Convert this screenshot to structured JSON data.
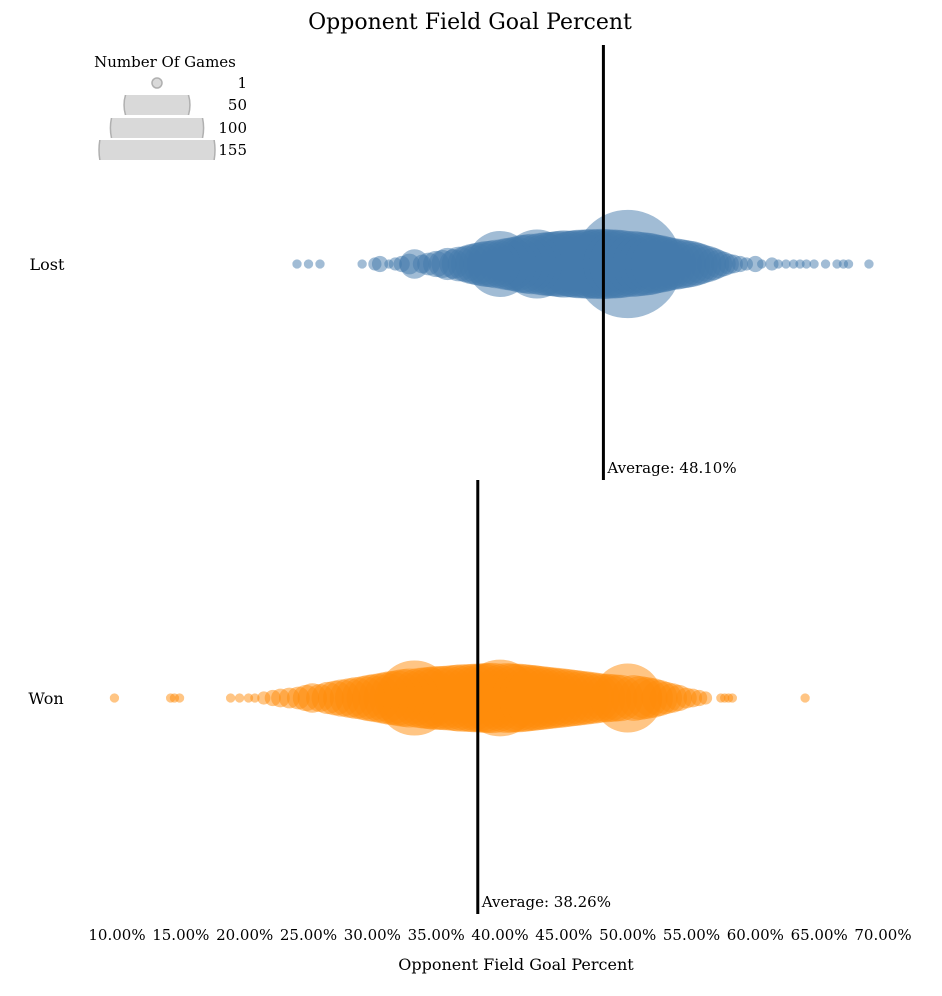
{
  "chart_data": {
    "type": "scatter",
    "subtype": "beeswarm-bubble",
    "title": "Opponent Field Goal Percent",
    "xlabel": "Opponent Field Goal Percent",
    "ylabel": "",
    "xlim": [
      10,
      70
    ],
    "x_ticks": [
      10,
      15,
      20,
      25,
      30,
      35,
      40,
      45,
      50,
      55,
      60,
      65,
      70
    ],
    "x_tick_labels": [
      "10.00%",
      "15.00%",
      "20.00%",
      "25.00%",
      "30.00%",
      "35.00%",
      "40.00%",
      "45.00%",
      "50.00%",
      "55.00%",
      "60.00%",
      "65.00%",
      "70.00%"
    ],
    "grid": false,
    "size_legend": {
      "title": "Number Of Games",
      "position": "top-left",
      "entries": [
        {
          "value": 1,
          "label": "1"
        },
        {
          "value": 50,
          "label": "50"
        },
        {
          "value": 100,
          "label": "100"
        },
        {
          "value": 155,
          "label": "155"
        }
      ],
      "max_value": 155
    },
    "series": [
      {
        "name": "Lost",
        "color": "#4479ab",
        "average": 48.1,
        "average_label": "Average: 48.10%",
        "points": [
          [
            24.1,
            1
          ],
          [
            25.0,
            1
          ],
          [
            25.9,
            1
          ],
          [
            29.2,
            1
          ],
          [
            30.2,
            2
          ],
          [
            30.6,
            3
          ],
          [
            31.3,
            1
          ],
          [
            31.8,
            2
          ],
          [
            32.3,
            3
          ],
          [
            32.9,
            5
          ],
          [
            33.3,
            10
          ],
          [
            33.9,
            4
          ],
          [
            34.4,
            6
          ],
          [
            35.0,
            8
          ],
          [
            35.5,
            9
          ],
          [
            35.9,
            12
          ],
          [
            36.4,
            10
          ],
          [
            36.8,
            14
          ],
          [
            37.3,
            15
          ],
          [
            37.7,
            18
          ],
          [
            38.1,
            20
          ],
          [
            38.5,
            22
          ],
          [
            38.9,
            24
          ],
          [
            39.3,
            25
          ],
          [
            39.7,
            27
          ],
          [
            40.0,
            50
          ],
          [
            40.4,
            30
          ],
          [
            40.8,
            32
          ],
          [
            41.2,
            34
          ],
          [
            41.7,
            38
          ],
          [
            42.1,
            40
          ],
          [
            42.5,
            42
          ],
          [
            42.9,
            55
          ],
          [
            43.3,
            45
          ],
          [
            43.8,
            47
          ],
          [
            44.2,
            48
          ],
          [
            44.6,
            50
          ],
          [
            45.0,
            52
          ],
          [
            45.5,
            50
          ],
          [
            45.8,
            52
          ],
          [
            46.2,
            54
          ],
          [
            46.7,
            55
          ],
          [
            47.1,
            56
          ],
          [
            47.5,
            55
          ],
          [
            47.9,
            57
          ],
          [
            48.3,
            56
          ],
          [
            48.8,
            55
          ],
          [
            49.2,
            54
          ],
          [
            49.6,
            52
          ],
          [
            50.0,
            135
          ],
          [
            50.4,
            50
          ],
          [
            50.8,
            48
          ],
          [
            51.3,
            46
          ],
          [
            51.7,
            44
          ],
          [
            52.1,
            40
          ],
          [
            52.5,
            38
          ],
          [
            52.9,
            35
          ],
          [
            53.3,
            32
          ],
          [
            53.8,
            30
          ],
          [
            54.2,
            28
          ],
          [
            54.6,
            26
          ],
          [
            55.0,
            24
          ],
          [
            55.4,
            21
          ],
          [
            55.8,
            18
          ],
          [
            56.3,
            15
          ],
          [
            56.7,
            12
          ],
          [
            57.1,
            9
          ],
          [
            57.5,
            7
          ],
          [
            57.9,
            5
          ],
          [
            58.3,
            4
          ],
          [
            58.8,
            3
          ],
          [
            59.3,
            2
          ],
          [
            60.0,
            3
          ],
          [
            60.5,
            1
          ],
          [
            61.3,
            2
          ],
          [
            61.8,
            1
          ],
          [
            62.4,
            1
          ],
          [
            63.0,
            1
          ],
          [
            63.5,
            1
          ],
          [
            64.0,
            1
          ],
          [
            64.6,
            1
          ],
          [
            65.5,
            1
          ],
          [
            66.4,
            1
          ],
          [
            66.9,
            1
          ],
          [
            67.3,
            1
          ],
          [
            68.9,
            1
          ]
        ]
      },
      {
        "name": "Won",
        "color": "#ff8c0a",
        "average": 38.26,
        "average_label": "Average: 38.26%",
        "points": [
          [
            9.8,
            1
          ],
          [
            14.2,
            1
          ],
          [
            14.5,
            1
          ],
          [
            14.9,
            1
          ],
          [
            18.9,
            1
          ],
          [
            19.6,
            1
          ],
          [
            20.3,
            1
          ],
          [
            20.8,
            1
          ],
          [
            21.5,
            2
          ],
          [
            22.2,
            3
          ],
          [
            22.8,
            4
          ],
          [
            23.5,
            5
          ],
          [
            24.2,
            6
          ],
          [
            24.8,
            8
          ],
          [
            25.3,
            10
          ],
          [
            25.9,
            9
          ],
          [
            26.5,
            12
          ],
          [
            27.1,
            14
          ],
          [
            27.6,
            16
          ],
          [
            28.2,
            18
          ],
          [
            28.7,
            20
          ],
          [
            29.3,
            22
          ],
          [
            29.8,
            25
          ],
          [
            30.3,
            27
          ],
          [
            30.9,
            30
          ],
          [
            31.4,
            33
          ],
          [
            31.9,
            35
          ],
          [
            32.4,
            38
          ],
          [
            32.9,
            40
          ],
          [
            33.3,
            65
          ],
          [
            33.8,
            42
          ],
          [
            34.3,
            44
          ],
          [
            34.8,
            46
          ],
          [
            35.3,
            47
          ],
          [
            35.8,
            48
          ],
          [
            36.4,
            50
          ],
          [
            36.9,
            52
          ],
          [
            37.5,
            53
          ],
          [
            38.0,
            54
          ],
          [
            38.5,
            55
          ],
          [
            38.9,
            56
          ],
          [
            39.4,
            57
          ],
          [
            40.0,
            68
          ],
          [
            40.5,
            56
          ],
          [
            41.0,
            55
          ],
          [
            41.5,
            54
          ],
          [
            42.0,
            52
          ],
          [
            42.5,
            50
          ],
          [
            42.9,
            48
          ],
          [
            43.4,
            46
          ],
          [
            43.9,
            44
          ],
          [
            44.4,
            42
          ],
          [
            44.9,
            40
          ],
          [
            45.4,
            38
          ],
          [
            45.9,
            36
          ],
          [
            46.4,
            34
          ],
          [
            46.9,
            32
          ],
          [
            47.4,
            30
          ],
          [
            47.9,
            28
          ],
          [
            48.4,
            27
          ],
          [
            48.9,
            26
          ],
          [
            49.4,
            25
          ],
          [
            50.0,
            55
          ],
          [
            50.5,
            24
          ],
          [
            51.0,
            22
          ],
          [
            51.5,
            20
          ],
          [
            52.0,
            18
          ],
          [
            52.5,
            15
          ],
          [
            53.0,
            12
          ],
          [
            53.5,
            10
          ],
          [
            54.0,
            8
          ],
          [
            54.6,
            5
          ],
          [
            55.1,
            4
          ],
          [
            55.6,
            3
          ],
          [
            56.1,
            2
          ],
          [
            57.3,
            1
          ],
          [
            57.6,
            1
          ],
          [
            57.9,
            1
          ],
          [
            58.2,
            1
          ],
          [
            63.9,
            1
          ]
        ]
      }
    ]
  }
}
